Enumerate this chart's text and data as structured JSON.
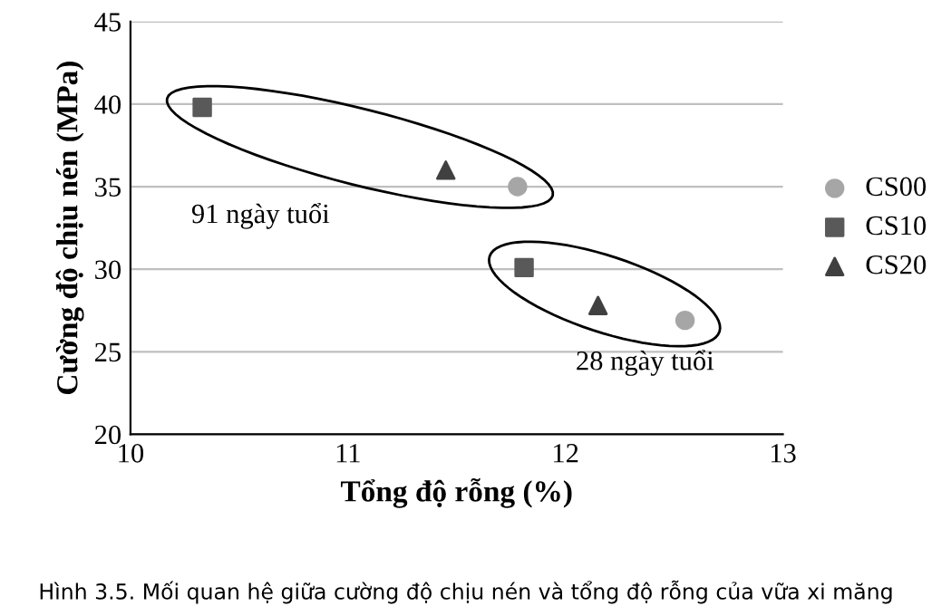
{
  "chart_data": {
    "type": "scatter",
    "xlabel": "Tổng độ rỗng (%)",
    "ylabel": "Cường độ chịu nén (MPa)",
    "xlim": [
      10,
      13
    ],
    "xticks": [
      10,
      11,
      12,
      13
    ],
    "ylim": [
      20,
      45
    ],
    "yticks": [
      20,
      25,
      30,
      35,
      40,
      45
    ],
    "grid": "y",
    "legend": "right",
    "series": [
      {
        "name": "CS00",
        "color": "#a6a6a6",
        "marker": "circle",
        "x": [
          11.78,
          12.55
        ],
        "values": [
          35,
          26.9
        ]
      },
      {
        "name": "CS10",
        "color": "#595959",
        "marker": "square",
        "x": [
          10.33,
          11.81
        ],
        "values": [
          39.8,
          30.1
        ]
      },
      {
        "name": "CS20",
        "color": "#404040",
        "marker": "triangle",
        "x": [
          11.45,
          12.15
        ],
        "values": [
          36,
          27.8
        ]
      }
    ],
    "annotations": [
      "91 ngày tuổi",
      "28 ngày tuổi",
      "Hình 3.5. Mối quan hệ giữa cường độ chịu nén và tổng độ rỗng của vữa xi măng"
    ]
  }
}
